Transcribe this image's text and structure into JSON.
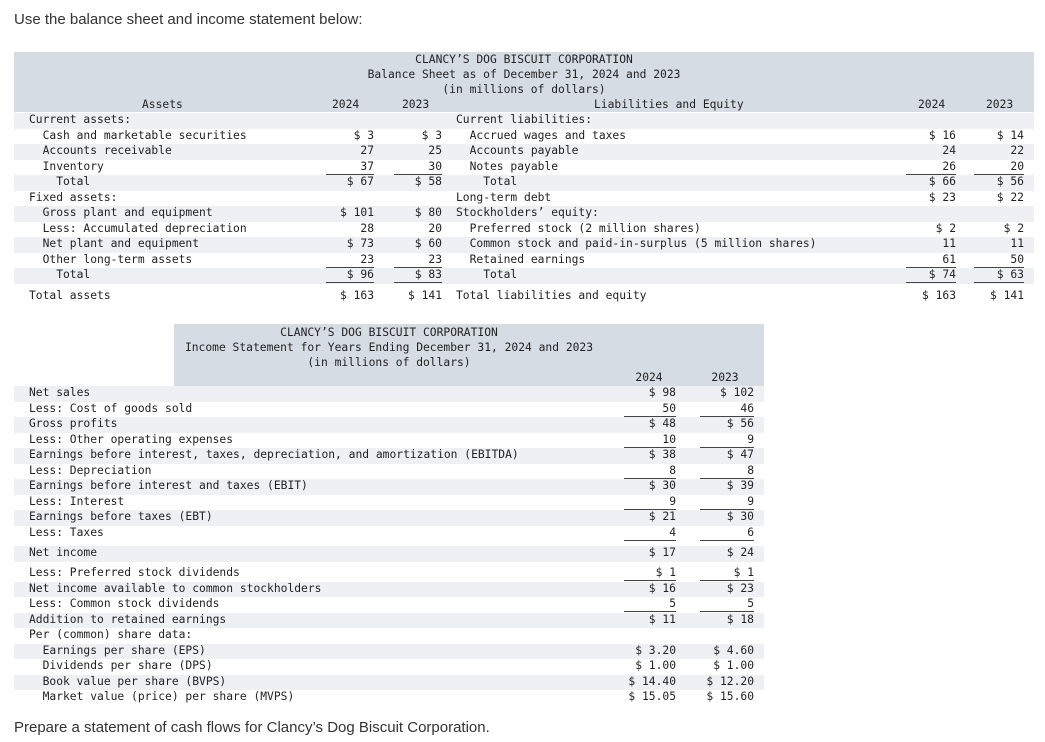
{
  "intro_text": "Use the balance sheet and income statement below:",
  "outro_text": "Prepare a statement of cash flows for Clancy’s Dog Biscuit Corporation.",
  "balance_sheet": {
    "company": "CLANCY’S DOG BISCUIT CORPORATION",
    "title": "Balance Sheet as of December 31, 2024 and 2023",
    "units": "(in millions of dollars)",
    "assets_header": "Assets",
    "liab_header": "Liabilities and Equity",
    "year1": "2024",
    "year2": "2023",
    "assets": [
      {
        "label": "Current assets:",
        "v1": "",
        "v2": ""
      },
      {
        "label": "  Cash and marketable securities",
        "v1": "$ 3",
        "v2": "$ 3"
      },
      {
        "label": "  Accounts receivable",
        "v1": "27",
        "v2": "25"
      },
      {
        "label": "  Inventory",
        "v1": "37",
        "v2": "30"
      },
      {
        "label": "    Total",
        "v1": "$ 67",
        "v2": "$ 58"
      },
      {
        "label": "Fixed assets:",
        "v1": "",
        "v2": ""
      },
      {
        "label": "  Gross plant and equipment",
        "v1": "$ 101",
        "v2": "$ 80"
      },
      {
        "label": "  Less: Accumulated depreciation",
        "v1": "28",
        "v2": "20"
      },
      {
        "label": "  Net plant and equipment",
        "v1": "$ 73",
        "v2": "$ 60"
      },
      {
        "label": "  Other long-term assets",
        "v1": "23",
        "v2": "23"
      },
      {
        "label": "    Total",
        "v1": "$ 96",
        "v2": "$ 83"
      },
      {
        "label": "Total assets",
        "v1": "$ 163",
        "v2": "$ 141"
      }
    ],
    "liabilities": [
      {
        "label": "Current liabilities:",
        "v1": "",
        "v2": ""
      },
      {
        "label": "  Accrued wages and taxes",
        "v1": "$ 16",
        "v2": "$ 14"
      },
      {
        "label": "  Accounts payable",
        "v1": "24",
        "v2": "22"
      },
      {
        "label": "  Notes payable",
        "v1": "26",
        "v2": "20"
      },
      {
        "label": "    Total",
        "v1": "$ 66",
        "v2": "$ 56"
      },
      {
        "label": "Long-term debt",
        "v1": "$ 23",
        "v2": "$ 22"
      },
      {
        "label": "Stockholders’ equity:",
        "v1": "",
        "v2": ""
      },
      {
        "label": "  Preferred stock (2 million shares)",
        "v1": "$ 2",
        "v2": "$ 2"
      },
      {
        "label": "  Common stock and paid-in-surplus (5 million shares)",
        "v1": "11",
        "v2": "11"
      },
      {
        "label": "  Retained earnings",
        "v1": "61",
        "v2": "50"
      },
      {
        "label": "    Total",
        "v1": "$ 74",
        "v2": "$ 63"
      },
      {
        "label": "Total liabilities and equity",
        "v1": "$ 163",
        "v2": "$ 141"
      }
    ]
  },
  "income_statement": {
    "company": "CLANCY’S DOG BISCUIT CORPORATION",
    "title": "Income Statement for Years Ending December 31, 2024 and 2023",
    "units": "(in millions of dollars)",
    "year1": "2024",
    "year2": "2023",
    "rows": [
      {
        "label": "Net sales",
        "v1": "$ 98",
        "v2": "$ 102"
      },
      {
        "label": "Less: Cost of goods sold",
        "v1": "50",
        "v2": "46"
      },
      {
        "label": "Gross profits",
        "v1": "$ 48",
        "v2": "$ 56"
      },
      {
        "label": "Less: Other operating expenses",
        "v1": "10",
        "v2": "9"
      },
      {
        "label": "Earnings before interest, taxes, depreciation, and amortization (EBITDA)",
        "v1": "$ 38",
        "v2": "$ 47"
      },
      {
        "label": "Less: Depreciation",
        "v1": "8",
        "v2": "8"
      },
      {
        "label": "Earnings before interest and taxes (EBIT)",
        "v1": "$ 30",
        "v2": "$ 39"
      },
      {
        "label": "Less: Interest",
        "v1": "9",
        "v2": "9"
      },
      {
        "label": "Earnings before taxes (EBT)",
        "v1": "$ 21",
        "v2": "$ 30"
      },
      {
        "label": "Less: Taxes",
        "v1": "4",
        "v2": "6"
      },
      {
        "label": "Net income",
        "v1": "$ 17",
        "v2": "$ 24"
      },
      {
        "label": "Less: Preferred stock dividends",
        "v1": "$ 1",
        "v2": "$ 1"
      },
      {
        "label": "Net income available to common stockholders",
        "v1": "$ 16",
        "v2": "$ 23"
      },
      {
        "label": "Less: Common stock dividends",
        "v1": "5",
        "v2": "5"
      },
      {
        "label": "Addition to retained earnings",
        "v1": "$ 11",
        "v2": "$ 18"
      },
      {
        "label": "Per (common) share data:",
        "v1": "",
        "v2": ""
      },
      {
        "label": "  Earnings per share (EPS)",
        "v1": "$ 3.20",
        "v2": "$ 4.60"
      },
      {
        "label": "  Dividends per share (DPS)",
        "v1": "$ 1.00",
        "v2": "$ 1.00"
      },
      {
        "label": "  Book value per share (BVPS)",
        "v1": "$ 14.40",
        "v2": "$ 12.20"
      },
      {
        "label": "  Market value (price) per share (MVPS)",
        "v1": "$ 15.05",
        "v2": "$ 15.60"
      }
    ]
  }
}
